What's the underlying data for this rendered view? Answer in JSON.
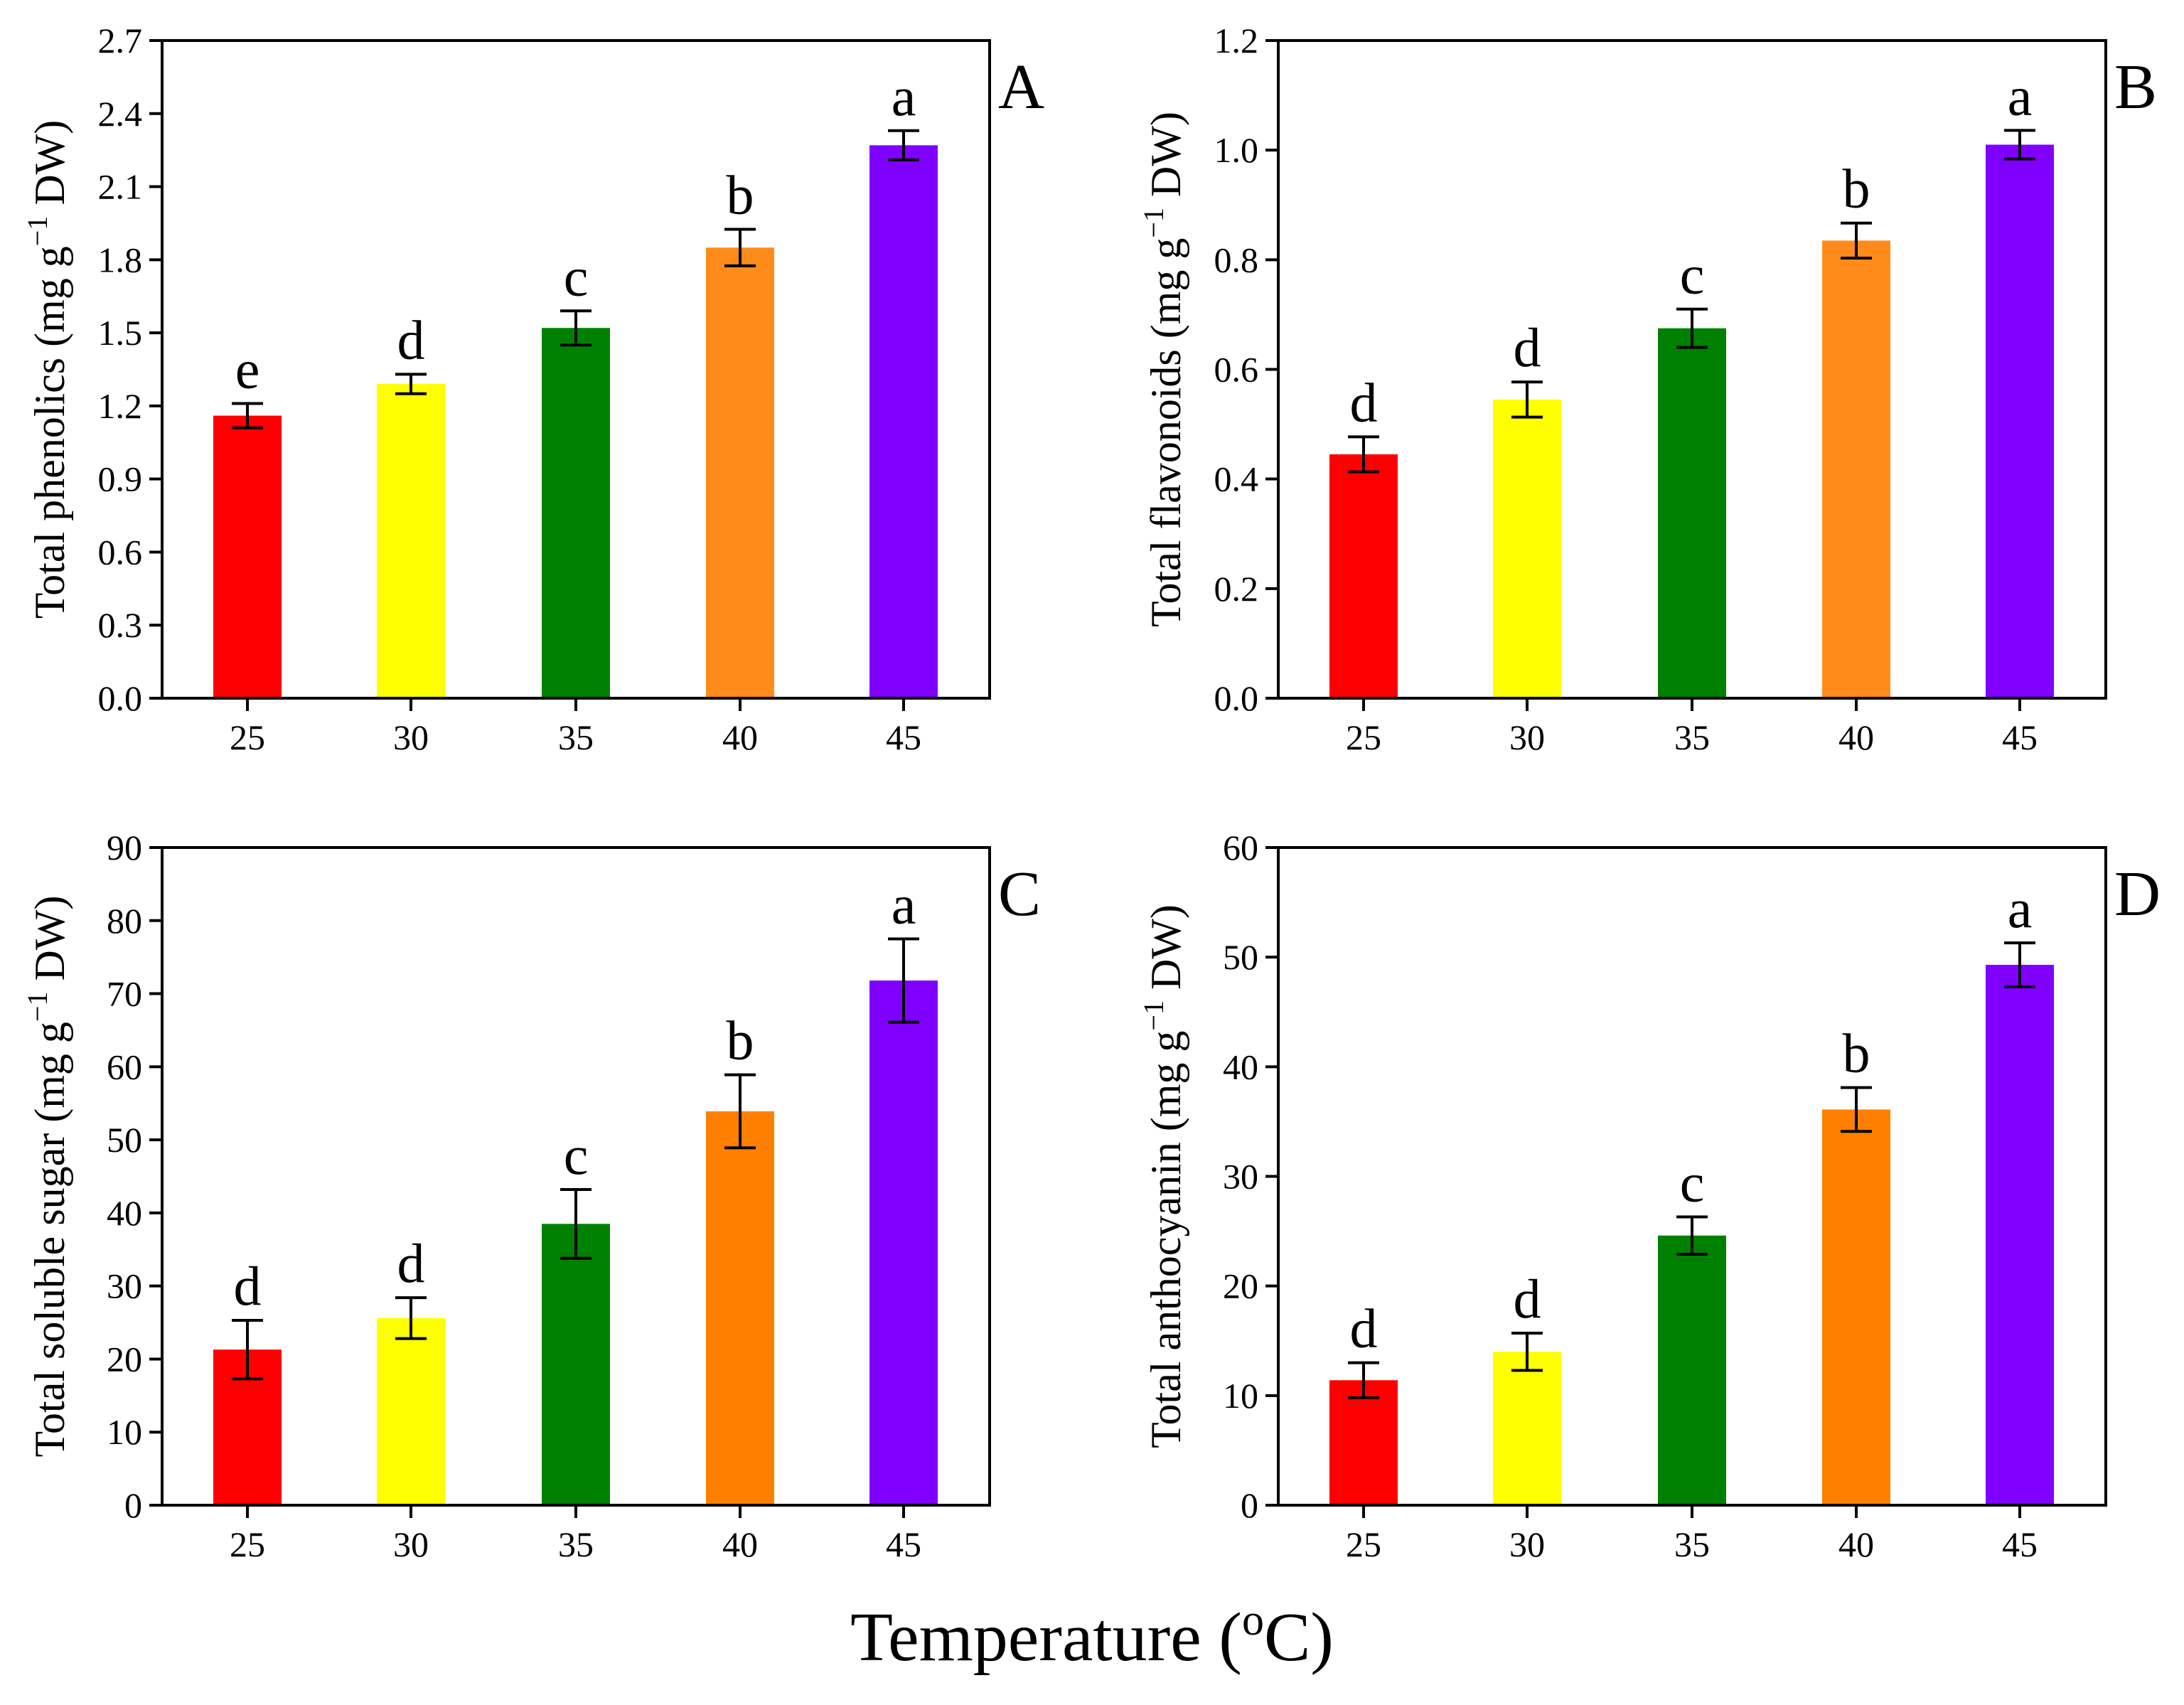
{
  "figure": {
    "xlabel_main": "Temperature (",
    "xlabel_sup": "o",
    "xlabel_unit": "C)"
  },
  "chart_data": [
    {
      "type": "bar",
      "panel": "A",
      "categories": [
        "25",
        "30",
        "35",
        "40",
        "45"
      ],
      "values": [
        1.16,
        1.29,
        1.52,
        1.85,
        2.27
      ],
      "errors": [
        0.05,
        0.04,
        0.07,
        0.075,
        0.06
      ],
      "letters": [
        "e",
        "d",
        "c",
        "b",
        "a"
      ],
      "colors": [
        "#ff0000",
        "#ffff00",
        "#008000",
        "#ff8c1a",
        "#8000ff"
      ],
      "ylabel_pre": "Total phenolics (mg g",
      "ylabel_sup": "−1",
      "ylabel_post": " DW)",
      "ylim": [
        0,
        2.7
      ],
      "yticks": [
        "0.0",
        "0.3",
        "0.6",
        "0.9",
        "1.2",
        "1.5",
        "1.8",
        "2.1",
        "2.4",
        "2.7"
      ],
      "grid": false
    },
    {
      "type": "bar",
      "panel": "B",
      "categories": [
        "25",
        "30",
        "35",
        "40",
        "45"
      ],
      "values": [
        0.445,
        0.545,
        0.675,
        0.835,
        1.01
      ],
      "errors": [
        0.032,
        0.032,
        0.035,
        0.032,
        0.026
      ],
      "letters": [
        "d",
        "d",
        "c",
        "b",
        "a"
      ],
      "colors": [
        "#ff0000",
        "#ffff00",
        "#008000",
        "#ff8c1a",
        "#8000ff"
      ],
      "ylabel_pre": "Total flavonoids (mg g",
      "ylabel_sup": "−1",
      "ylabel_post": " DW)",
      "ylim": [
        0,
        1.2
      ],
      "yticks": [
        "0.0",
        "0.2",
        "0.4",
        "0.6",
        "0.8",
        "1.0",
        "1.2"
      ],
      "grid": false
    },
    {
      "type": "bar",
      "panel": "C",
      "categories": [
        "25",
        "30",
        "35",
        "40",
        "45"
      ],
      "values": [
        21.3,
        25.6,
        38.5,
        53.9,
        71.8
      ],
      "errors": [
        4.0,
        2.8,
        4.7,
        5.0,
        5.7
      ],
      "letters": [
        "d",
        "d",
        "c",
        "b",
        "a"
      ],
      "colors": [
        "#ff0000",
        "#ffff00",
        "#008000",
        "#ff8000",
        "#8000ff"
      ],
      "ylabel_pre": "Total soluble sugar (mg g",
      "ylabel_sup": "−1",
      "ylabel_post": " DW)",
      "ylim": [
        0,
        90
      ],
      "yticks": [
        "0",
        "10",
        "20",
        "30",
        "40",
        "50",
        "60",
        "70",
        "80",
        "90"
      ],
      "grid": false
    },
    {
      "type": "bar",
      "panel": "D",
      "categories": [
        "25",
        "30",
        "35",
        "40",
        "45"
      ],
      "values": [
        11.4,
        14.0,
        24.6,
        36.1,
        49.3
      ],
      "errors": [
        1.6,
        1.7,
        1.7,
        2.0,
        2.0
      ],
      "letters": [
        "d",
        "d",
        "c",
        "b",
        "a"
      ],
      "colors": [
        "#ff0000",
        "#ffff00",
        "#008000",
        "#ff8000",
        "#8000ff"
      ],
      "ylabel_pre": "Total anthocyanin (mg g",
      "ylabel_sup": "−1",
      "ylabel_post": " DW)",
      "ylim": [
        0,
        60
      ],
      "yticks": [
        "0",
        "10",
        "20",
        "30",
        "40",
        "50",
        "60"
      ],
      "grid": false
    }
  ]
}
